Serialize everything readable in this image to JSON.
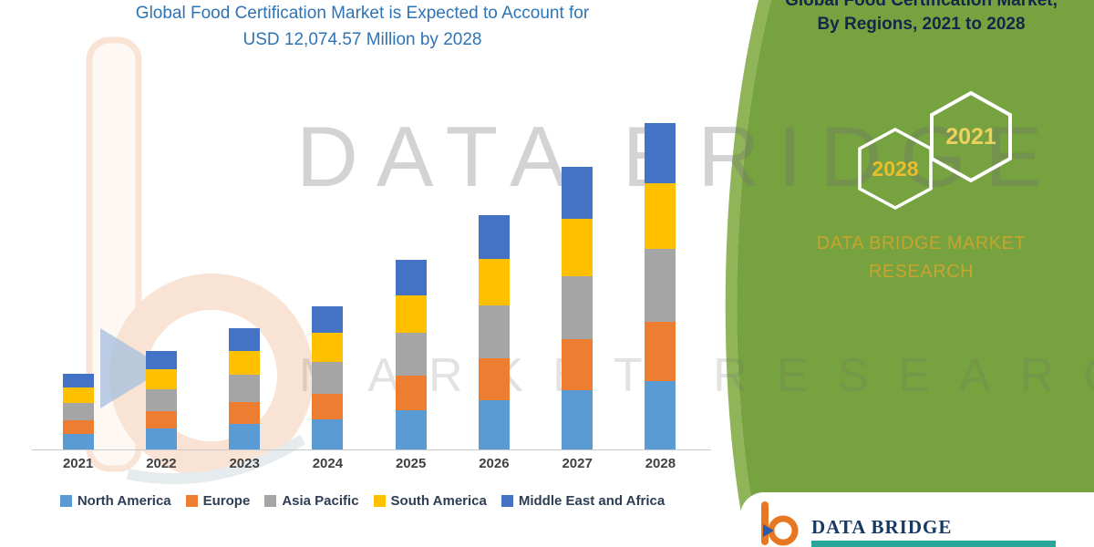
{
  "chart_title": {
    "line1": "Global Food Certification Market is Expected to Account for",
    "line2": "USD 12,074.57 Million by 2028"
  },
  "chart_data": {
    "type": "bar",
    "stacked": true,
    "title": "Global Food Certification Market is Expected to Account for USD 12,074.57 Million by 2028",
    "categories": [
      "2021",
      "2022",
      "2023",
      "2024",
      "2025",
      "2026",
      "2027",
      "2028"
    ],
    "series": [
      {
        "name": "North America",
        "color": "#5b9bd5",
        "values": [
          587,
          763,
          939,
          1109,
          1469,
          1815,
          2190,
          2531
        ]
      },
      {
        "name": "Europe",
        "color": "#ed7d31",
        "values": [
          508,
          661,
          813,
          960,
          1272,
          1572,
          1897,
          2192
        ]
      },
      {
        "name": "Asia Pacific",
        "color": "#a5a5a5",
        "values": [
          626,
          814,
          1001,
          1182,
          1567,
          1936,
          2336,
          2699
        ]
      },
      {
        "name": "South America",
        "color": "#ffc000",
        "values": [
          563,
          732,
          901,
          1064,
          1410,
          1742,
          2102,
          2428
        ]
      },
      {
        "name": "Middle East and Africa",
        "color": "#4472c4",
        "values": [
          516,
          671,
          826,
          975,
          1292,
          1597,
          1927,
          2226
        ]
      }
    ],
    "total_2028": "12,074.57",
    "unit": "USD Million",
    "ylim": [
      0,
      12500
    ],
    "grid": false,
    "legend_position": "bottom",
    "xlabel": "",
    "ylabel": ""
  },
  "side_panel": {
    "title_line1": "Global Food Certification Market,",
    "title_line2": "By Regions, 2021 to 2028",
    "hexagons": [
      "2028",
      "2021"
    ],
    "brand_line1": "DATA BRIDGE MARKET",
    "brand_line2": "RESEARCH",
    "panel_color": "#76a23f",
    "brand_text_color": "#c8a42e"
  },
  "watermark": {
    "line1": "DATA BRIDGE",
    "line2": "MARKET RESEARCH"
  },
  "footer": {
    "brand": "DATA BRIDGE"
  }
}
